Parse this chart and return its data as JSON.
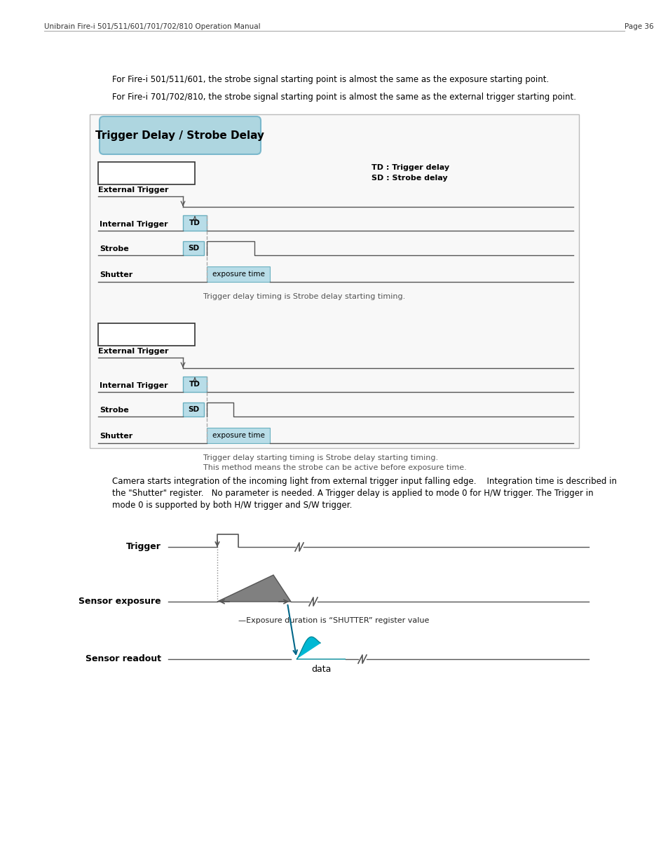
{
  "page_title": "Unibrain Fire-i 501/511/601/701/702/810 Operation Manual",
  "page_num": "Page 36",
  "para1": "For Fire-i 501/511/601, the strobe signal starting point is almost the same as the exposure starting point.",
  "para2": "For Fire-i 701/702/810, the strobe signal starting point is almost the same as the external trigger starting point.",
  "box_title": "Trigger Delay / Strobe Delay",
  "legend_td": "TD : Trigger delay",
  "legend_sd": "SD : Strobe delay",
  "diagram1_caption": "Trigger delay timing is Strobe delay starting timing.",
  "diagram2_caption_line1": "Trigger delay starting timing is Strobe delay starting timing.",
  "diagram2_caption_line2": "This method means the strobe can be active before exposure time.",
  "bottom_para_line1": "Camera starts integration of the incoming light from external trigger input falling edge.    Integration time is described in",
  "bottom_para_line2": "the \"Shutter\" register.   No parameter is needed. A Trigger delay is applied to mode 0 for H/W trigger. The Trigger in",
  "bottom_para_line3": "mode 0 is supported by both H/W trigger and S/W trigger.",
  "bottom_data_label": "data",
  "shutter_label": "—Exposure duration is “SHUTTER” register value",
  "bg_color": "#ffffff",
  "box_bg": "#aed6e0",
  "signal_bg": "#b8dde8",
  "text_color": "#000000",
  "cyan_fill": "#00b8d4",
  "gray_fill": "#808080",
  "signal_line": "#555555",
  "dashed_line": "#aaaaaa"
}
